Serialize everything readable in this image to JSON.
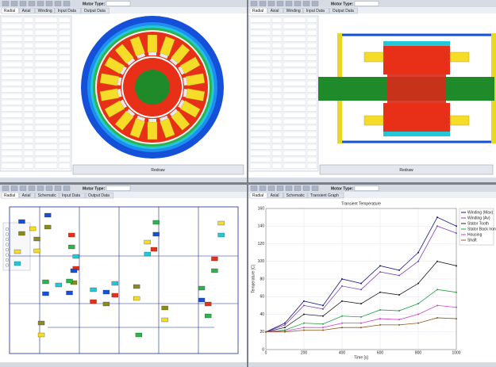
{
  "panels": [
    {
      "motor_type_label": "Motor Type:",
      "tabs": [
        "Radial",
        "Axial",
        "Winding",
        "Input Data",
        "Output Data"
      ],
      "button": "Redraw"
    },
    {
      "motor_type_label": "Motor Type:",
      "tabs": [
        "Radial",
        "Axial",
        "Winding",
        "Input Data",
        "Output Data"
      ],
      "button": "Redraw"
    },
    {
      "motor_type_label": "Motor Type:",
      "tabs": [
        "Radial",
        "Axial",
        "Schematic",
        "Input Data",
        "Output Data"
      ]
    },
    {
      "motor_type_label": "Motor Type:",
      "tabs": [
        "Radial",
        "Axial",
        "Schematic",
        "Transient Graph"
      ]
    }
  ],
  "chart_data": {
    "type": "line",
    "title": "Transient Temperature",
    "x_label": "Time [s]",
    "y_label": "Temperature [C]",
    "x": [
      0,
      100,
      200,
      300,
      400,
      500,
      600,
      700,
      800,
      900,
      1000
    ],
    "xlim": [
      0,
      1000
    ],
    "xticks": [
      0,
      200,
      400,
      600,
      800,
      1000
    ],
    "ylim": [
      0,
      160
    ],
    "yticks": [
      0,
      20,
      40,
      60,
      80,
      100,
      120,
      140,
      160
    ],
    "grid": true,
    "series": [
      {
        "name": "Winding (Max)",
        "color": "#1a1a80",
        "values": [
          20,
          30,
          55,
          50,
          80,
          75,
          95,
          90,
          110,
          150,
          140
        ]
      },
      {
        "name": "Winding (Av)",
        "color": "#8040c0",
        "values": [
          20,
          28,
          50,
          46,
          72,
          68,
          88,
          84,
          100,
          140,
          132
        ]
      },
      {
        "name": "Stator Tooth",
        "color": "#202020",
        "values": [
          20,
          25,
          40,
          38,
          55,
          52,
          65,
          62,
          75,
          100,
          95
        ]
      },
      {
        "name": "Stator Back Iron",
        "color": "#20a040",
        "values": [
          20,
          22,
          30,
          29,
          38,
          37,
          45,
          44,
          52,
          68,
          65
        ]
      },
      {
        "name": "Housing",
        "color": "#d040d0",
        "values": [
          20,
          21,
          25,
          25,
          30,
          30,
          35,
          34,
          40,
          50,
          48
        ]
      },
      {
        "name": "Shaft",
        "color": "#8a5a20",
        "values": [
          20,
          20,
          22,
          22,
          25,
          25,
          28,
          28,
          30,
          36,
          35
        ]
      }
    ]
  }
}
